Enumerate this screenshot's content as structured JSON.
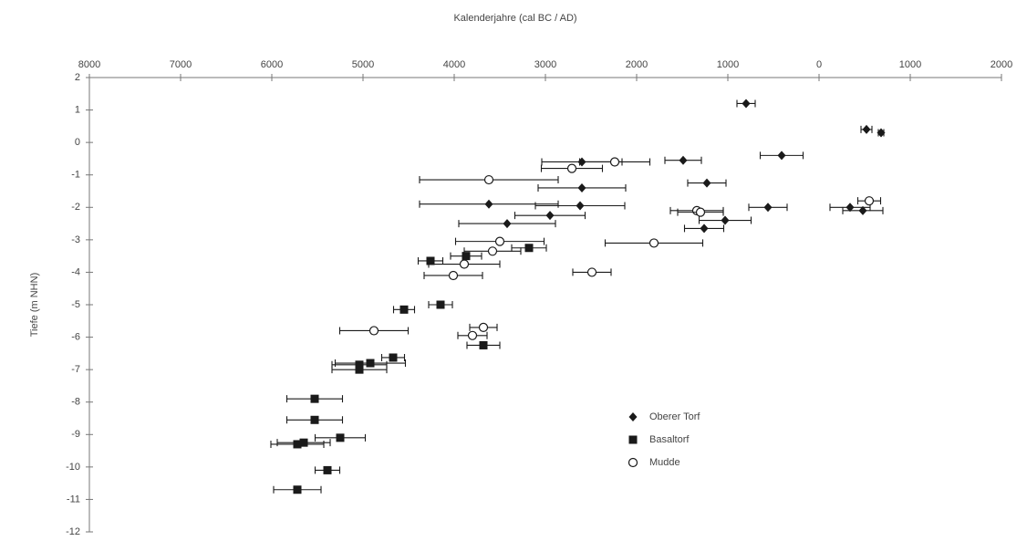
{
  "chart_data": {
    "type": "scatter",
    "title": "Kalenderjahre (cal BC / AD)",
    "y_label": "Tiefe (m NHN)",
    "xlim": [
      -8000,
      2000
    ],
    "xticks": [
      {
        "value": -8000,
        "label": "8000"
      },
      {
        "value": -7000,
        "label": "7000"
      },
      {
        "value": -6000,
        "label": "6000"
      },
      {
        "value": -5000,
        "label": "5000"
      },
      {
        "value": -4000,
        "label": "4000"
      },
      {
        "value": -3000,
        "label": "3000"
      },
      {
        "value": -2000,
        "label": "2000"
      },
      {
        "value": -1000,
        "label": "1000"
      },
      0,
      1000,
      2000
    ],
    "ylim": [
      -12,
      2
    ],
    "yticks": [
      2,
      1,
      0,
      -1,
      -2,
      -3,
      -4,
      -5,
      -6,
      -7,
      -8,
      -9,
      -10,
      -11,
      -12
    ],
    "series": [
      {
        "name": "Oberer Torf",
        "marker": "diamond",
        "color": "#1a1a1a",
        "x": [
          -800,
          520,
          680,
          -410,
          -1490,
          -2600,
          -2600,
          -1230,
          -3620,
          -2620,
          -560,
          340,
          480,
          -2950,
          -1030,
          -3420,
          -1260
        ],
        "values": [
          1.2,
          0.4,
          0.3,
          -0.4,
          -0.55,
          -0.6,
          -1.4,
          -1.25,
          -1.9,
          -1.95,
          -2.0,
          -2.0,
          -2.1,
          -2.25,
          -2.4,
          -2.5,
          -2.65
        ],
        "xerr": [
          100,
          60,
          30,
          235,
          200,
          440,
          480,
          210,
          760,
          490,
          210,
          220,
          220,
          385,
          285,
          530,
          215
        ]
      },
      {
        "name": "Basaltorf",
        "marker": "square",
        "color": "#1a1a1a",
        "x": [
          -3180,
          -3870,
          -4260,
          -4150,
          -4550,
          -4670,
          -3680,
          -4920,
          -5040,
          -5040,
          -5530,
          -5530,
          -5250,
          -5650,
          -5720,
          -5390,
          -5720
        ],
        "values": [
          -3.25,
          -3.5,
          -3.65,
          -5.0,
          -5.15,
          -6.63,
          -6.25,
          -6.8,
          -6.85,
          -7.0,
          -7.9,
          -8.55,
          -9.1,
          -9.25,
          -9.3,
          -10.1,
          -10.7
        ],
        "xerr": [
          190,
          170,
          135,
          130,
          115,
          125,
          180,
          385,
          300,
          300,
          305,
          305,
          275,
          290,
          290,
          135,
          260
        ]
      },
      {
        "name": "Mudde",
        "marker": "circle",
        "color": "#1a1a1a",
        "x": [
          -2240,
          -2710,
          -3620,
          550,
          -1340,
          -1300,
          -3500,
          -1810,
          -3580,
          -3890,
          -4010,
          -2490,
          -4880,
          -3680,
          -3800
        ],
        "values": [
          -0.6,
          -0.8,
          -1.15,
          -1.8,
          -2.1,
          -2.15,
          -3.05,
          -3.1,
          -3.35,
          -3.75,
          -4.1,
          -4.0,
          -5.8,
          -5.7,
          -5.95
        ],
        "xerr": [
          385,
          335,
          760,
          125,
          290,
          250,
          485,
          535,
          310,
          390,
          320,
          210,
          375,
          150,
          160
        ]
      }
    ]
  }
}
